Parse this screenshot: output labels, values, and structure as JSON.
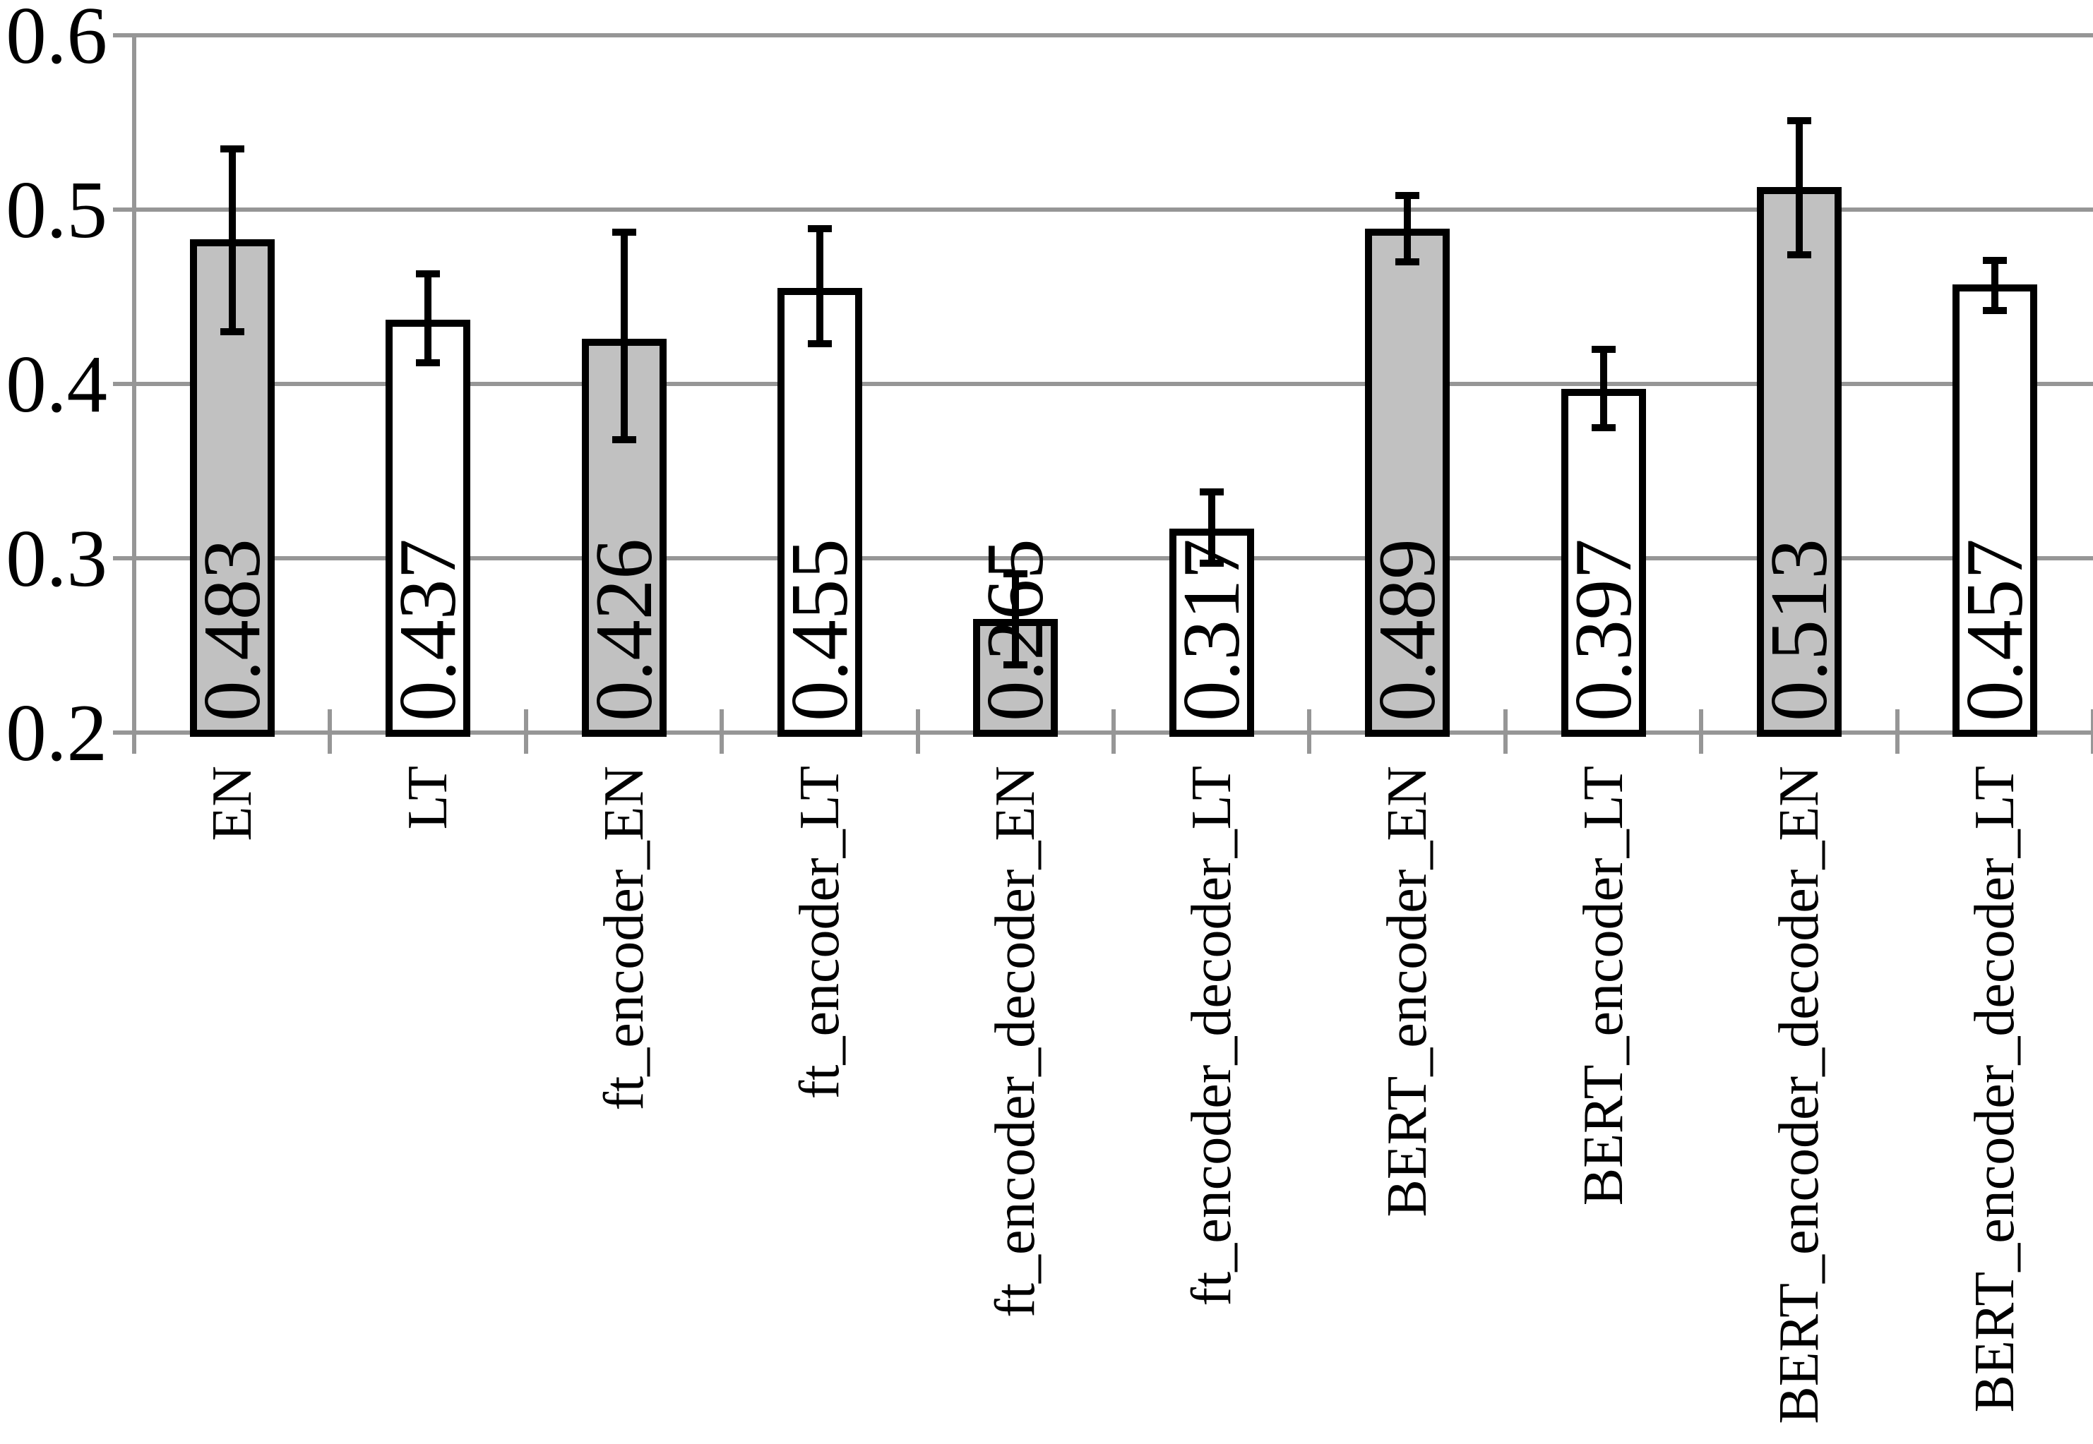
{
  "chart_data": {
    "type": "bar",
    "title": "",
    "xlabel": "",
    "ylabel": "",
    "categories": [
      "EN",
      "LT",
      "ft_encoder_EN",
      "ft_encoder_LT",
      "ft_encoder_decoder_EN",
      "ft_encoder_decoder_LT",
      "BERT_encoder_EN",
      "BERT_encoder_LT",
      "BERT_encoder_decoder_EN",
      "BERT_encoder_decoder_LT"
    ],
    "values": [
      0.483,
      0.437,
      0.426,
      0.455,
      0.265,
      0.317,
      0.489,
      0.397,
      0.513,
      0.457
    ],
    "value_labels": [
      "0.483",
      "0.437",
      "0.426",
      "0.455",
      "0.265",
      "0.317",
      "0.489",
      "0.397",
      "0.513",
      "0.457"
    ],
    "error_bars": {
      "low": [
        0.43,
        0.412,
        0.368,
        0.423,
        0.239,
        0.297,
        0.47,
        0.375,
        0.474,
        0.442
      ],
      "high": [
        0.535,
        0.463,
        0.487,
        0.489,
        0.291,
        0.338,
        0.508,
        0.42,
        0.551,
        0.471
      ]
    },
    "bar_fills": [
      "gray",
      "white",
      "gray",
      "white",
      "gray",
      "white",
      "gray",
      "white",
      "gray",
      "white"
    ],
    "ylim": [
      0.2,
      0.6
    ],
    "yticks": [
      0.2,
      0.3,
      0.4,
      0.5,
      0.6
    ],
    "ytick_labels": [
      "0.2",
      "0.3",
      "0.4",
      "0.5",
      "0.6"
    ],
    "grid": true,
    "legend_position": "none"
  },
  "colors": {
    "bar_gray": "#C1C1C1",
    "bar_white": "#FFFFFF",
    "bar_border": "#000000",
    "error_bar": "#000000",
    "gridline": "#969696",
    "axis": "#969696",
    "text": "#000000",
    "background": "#FFFFFF"
  }
}
